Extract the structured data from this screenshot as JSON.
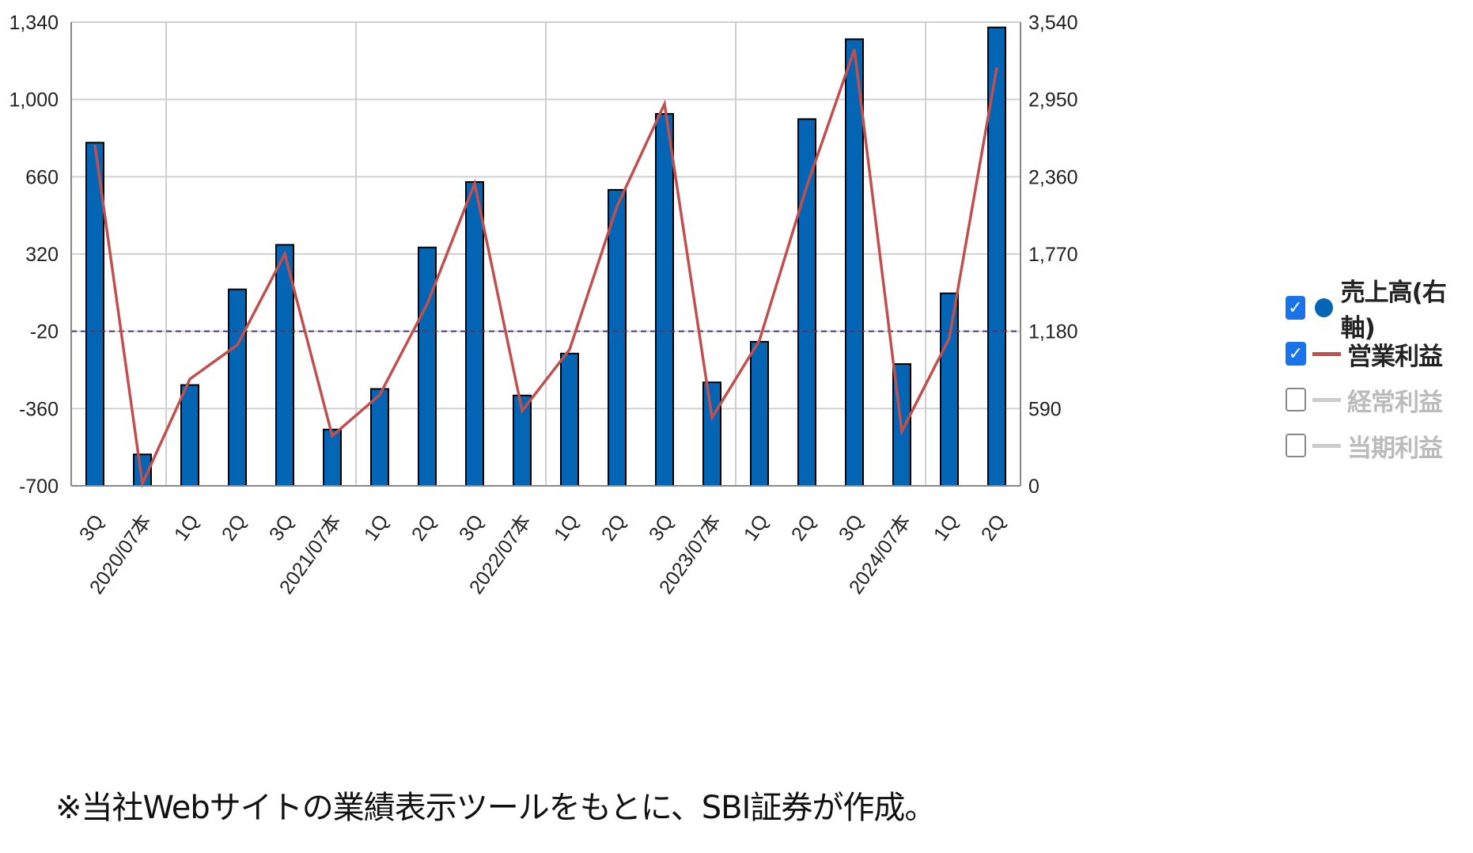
{
  "chart_data": {
    "type": "bar+line",
    "categories": [
      "3Q",
      "2020/07本",
      "1Q",
      "2Q",
      "3Q",
      "2021/07本",
      "1Q",
      "2Q",
      "3Q",
      "2022/07本",
      "1Q",
      "2Q",
      "3Q",
      "2023/07本",
      "1Q",
      "2Q",
      "3Q",
      "2024/07本",
      "1Q",
      "2Q"
    ],
    "left_axis": {
      "ylim": [
        -700,
        1340
      ],
      "ticks": [
        "1,340",
        "1,000",
        "660",
        "320",
        "-20",
        "-360",
        "-700"
      ],
      "tick_values": [
        1340,
        1000,
        660,
        320,
        -20,
        -360,
        -700
      ]
    },
    "right_axis": {
      "ylim": [
        0,
        3540
      ],
      "ticks": [
        "3,540",
        "2,950",
        "2,360",
        "1,770",
        "1,180",
        "590",
        "0"
      ],
      "tick_values": [
        3540,
        2950,
        2360,
        1770,
        1180,
        590,
        0
      ]
    },
    "series": [
      {
        "name": "売上高(右軸)",
        "type": "bar",
        "axis": "right",
        "color": "#0565b5",
        "values": [
          2620,
          240,
          770,
          1500,
          1840,
          430,
          740,
          1820,
          2320,
          690,
          1010,
          2260,
          2840,
          790,
          1100,
          2800,
          3410,
          930,
          1470,
          3500
        ]
      },
      {
        "name": "営業利益",
        "type": "line",
        "axis": "left",
        "color": "#c0504d",
        "values": [
          800,
          -690,
          -230,
          -80,
          320,
          -480,
          -300,
          100,
          630,
          -370,
          -100,
          530,
          980,
          -400,
          -60,
          620,
          1220,
          -460,
          -50,
          1140
        ]
      }
    ],
    "reference_line": {
      "value": -20,
      "axis": "left",
      "style": "dashed",
      "color": "#4b3a72"
    },
    "grid": true,
    "legend_position": "right"
  },
  "legend": {
    "items": [
      {
        "label": "売上高(右軸)",
        "checked": true,
        "marker": "dot",
        "color": "#0565b5",
        "label_color": "#222222"
      },
      {
        "label": "営業利益",
        "checked": true,
        "marker": "line",
        "color": "#c0504d",
        "label_color": "#222222"
      },
      {
        "label": "経常利益",
        "checked": false,
        "marker": "line",
        "color": "#cccccc",
        "label_color": "#bbbbbb"
      },
      {
        "label": "当期利益",
        "checked": false,
        "marker": "line",
        "color": "#cccccc",
        "label_color": "#bbbbbb"
      }
    ],
    "check_mark": "✓"
  },
  "caption": "※当社Webサイトの業績表示ツールをもとに、SBI証券が作成。"
}
